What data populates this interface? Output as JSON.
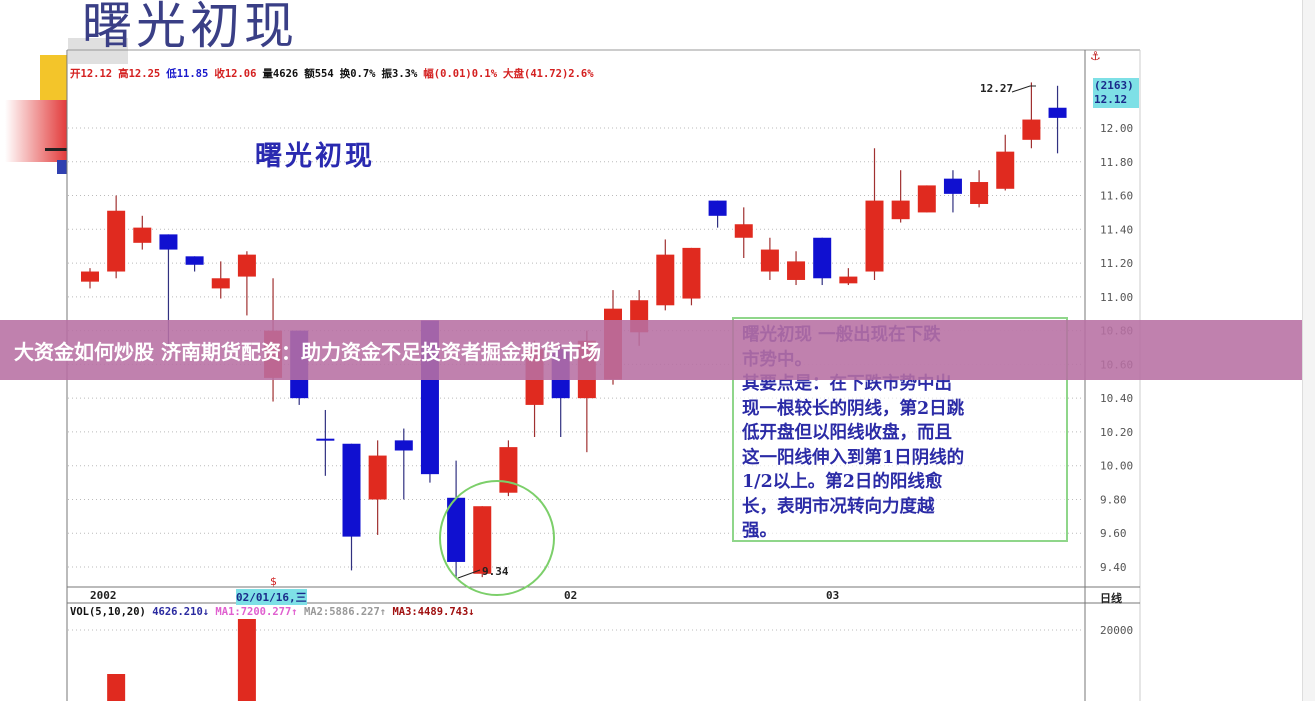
{
  "banner": {
    "text": "大资金如何炒股 济南期货配资：助力资金不足投资者掘金期货市场"
  },
  "header": {
    "big_title": "曙光初现",
    "sub_title": "曙光初现"
  },
  "info_bar": [
    {
      "label": "开12.12",
      "color": "#d42020"
    },
    {
      "label": "高12.25",
      "color": "#d42020"
    },
    {
      "label": "低11.85",
      "color": "#1a1acc"
    },
    {
      "label": "收12.06",
      "color": "#d42020"
    },
    {
      "label": "量4626",
      "color": "#111111"
    },
    {
      "label": "额554",
      "color": "#111111"
    },
    {
      "label": "换0.7%",
      "color": "#111111"
    },
    {
      "label": "振3.3%",
      "color": "#111111"
    },
    {
      "label": "幅(0.01)0.1%",
      "color": "#d42020"
    },
    {
      "label": "大盘(41.72)2.6%",
      "color": "#d42020"
    }
  ],
  "note": {
    "lines": [
      "曙光初现 一般出现在下跌",
      "市势中。",
      "其要点是：在下跌市势中出",
      "现一根较长的阴线，第2日跳",
      "低开盘但以阳线收盘，而且",
      "这一阳线伸入到第1日阴线的",
      "1/2以上。第2日的阳线愈",
      "长，表明市况转向力度越",
      "强。"
    ]
  },
  "right_panel": {
    "count": "(2163)",
    "price": "12.12",
    "period": "日线",
    "vol_tick": "20000"
  },
  "dates": {
    "d1": "2002",
    "d2": "02/01/16,三",
    "d3": "02",
    "d4": "03"
  },
  "vol_legend": {
    "name": "VOL(5,10,20)",
    "vol": "4626.210↓",
    "ma1": "MA1:7200.277↑",
    "ma2": "MA2:5886.227↑",
    "ma3": "MA3:4489.743↓"
  },
  "annotations": {
    "high": "12.27",
    "low": "9.34"
  },
  "chart_data": {
    "type": "candlestick",
    "ylim": [
      9.3,
      12.3
    ],
    "yticks": [
      "12.00",
      "11.80",
      "11.60",
      "11.40",
      "11.20",
      "11.00",
      "10.80",
      "10.60",
      "10.40",
      "10.20",
      "10.00",
      "9.80",
      "9.60",
      "9.40"
    ],
    "colors": {
      "up": "#e02a1f",
      "down": "#1010d0"
    },
    "candles": [
      [
        11.09,
        11.15,
        11.17,
        11.05
      ],
      [
        11.15,
        11.51,
        11.6,
        11.11
      ],
      [
        11.32,
        11.41,
        11.48,
        11.28
      ],
      [
        11.37,
        11.28,
        11.37,
        10.7
      ],
      [
        11.24,
        11.19,
        11.24,
        11.15
      ],
      [
        11.05,
        11.11,
        11.21,
        10.99
      ],
      [
        11.12,
        11.25,
        11.27,
        10.89
      ],
      [
        10.52,
        10.8,
        11.11,
        10.38
      ],
      [
        10.8,
        10.4,
        10.8,
        10.36
      ],
      [
        10.16,
        10.15,
        10.33,
        9.94
      ],
      [
        10.13,
        9.58,
        10.13,
        9.38
      ],
      [
        9.8,
        10.06,
        10.15,
        9.59
      ],
      [
        10.15,
        10.09,
        10.22,
        9.8
      ],
      [
        10.86,
        9.95,
        10.86,
        9.9
      ],
      [
        9.81,
        9.43,
        10.03,
        9.34
      ],
      [
        9.36,
        9.76,
        9.76,
        9.34
      ],
      [
        9.84,
        10.11,
        10.15,
        9.82
      ],
      [
        10.36,
        10.69,
        10.74,
        10.17
      ],
      [
        10.69,
        10.4,
        10.72,
        10.17
      ],
      [
        10.4,
        10.74,
        10.8,
        10.08
      ],
      [
        10.51,
        10.93,
        11.04,
        10.48
      ],
      [
        10.79,
        10.98,
        11.04,
        10.71
      ],
      [
        10.95,
        11.25,
        11.34,
        10.92
      ],
      [
        10.99,
        11.29,
        11.29,
        10.95
      ],
      [
        11.57,
        11.48,
        11.57,
        11.41
      ],
      [
        11.35,
        11.43,
        11.53,
        11.23
      ],
      [
        11.15,
        11.28,
        11.35,
        11.1
      ],
      [
        11.1,
        11.21,
        11.27,
        11.07
      ],
      [
        11.35,
        11.11,
        11.35,
        11.07
      ],
      [
        11.08,
        11.12,
        11.17,
        11.07
      ],
      [
        11.15,
        11.57,
        11.88,
        11.1
      ],
      [
        11.46,
        11.57,
        11.75,
        11.44
      ],
      [
        11.5,
        11.66,
        11.66,
        11.5
      ],
      [
        11.7,
        11.61,
        11.75,
        11.5
      ],
      [
        11.55,
        11.68,
        11.75,
        11.53
      ],
      [
        11.64,
        11.86,
        11.96,
        11.63
      ],
      [
        11.93,
        12.05,
        12.27,
        11.88
      ],
      [
        12.12,
        12.06,
        12.25,
        11.85
      ]
    ],
    "candle_fields": [
      "open",
      "close",
      "high",
      "low"
    ],
    "volume_visible": [
      {
        "index": 1,
        "value": 12000,
        "up": true
      },
      {
        "index": 6,
        "value": 22000,
        "up": true
      }
    ]
  }
}
